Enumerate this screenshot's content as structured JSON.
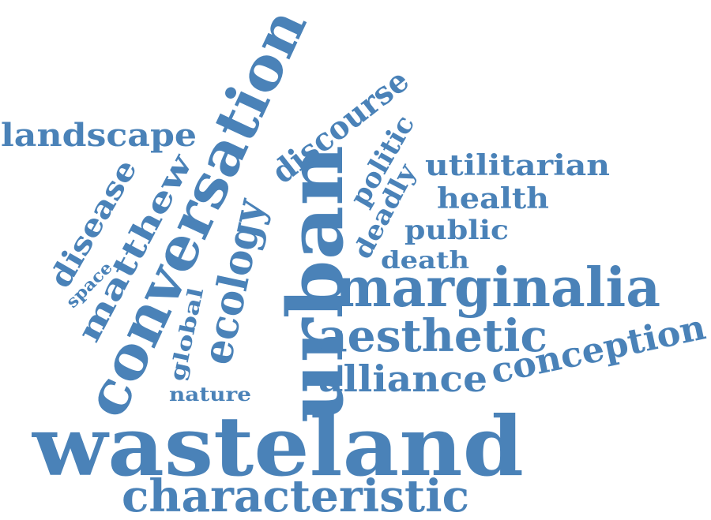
{
  "color": "#4a82b8",
  "words": [
    {
      "text": "wasteland"
    },
    {
      "text": "urban"
    },
    {
      "text": "conversation"
    },
    {
      "text": "marginalia"
    },
    {
      "text": "characteristic"
    },
    {
      "text": "aesthetic"
    },
    {
      "text": "ecology"
    },
    {
      "text": "alliance"
    },
    {
      "text": "conception"
    },
    {
      "text": "discourse"
    },
    {
      "text": "matthew"
    },
    {
      "text": "landscape"
    },
    {
      "text": "disease"
    },
    {
      "text": "utilitarian"
    },
    {
      "text": "health"
    },
    {
      "text": "politic"
    },
    {
      "text": "deadly"
    },
    {
      "text": "public"
    },
    {
      "text": "death"
    },
    {
      "text": "global"
    },
    {
      "text": "nature"
    },
    {
      "text": "space"
    }
  ]
}
